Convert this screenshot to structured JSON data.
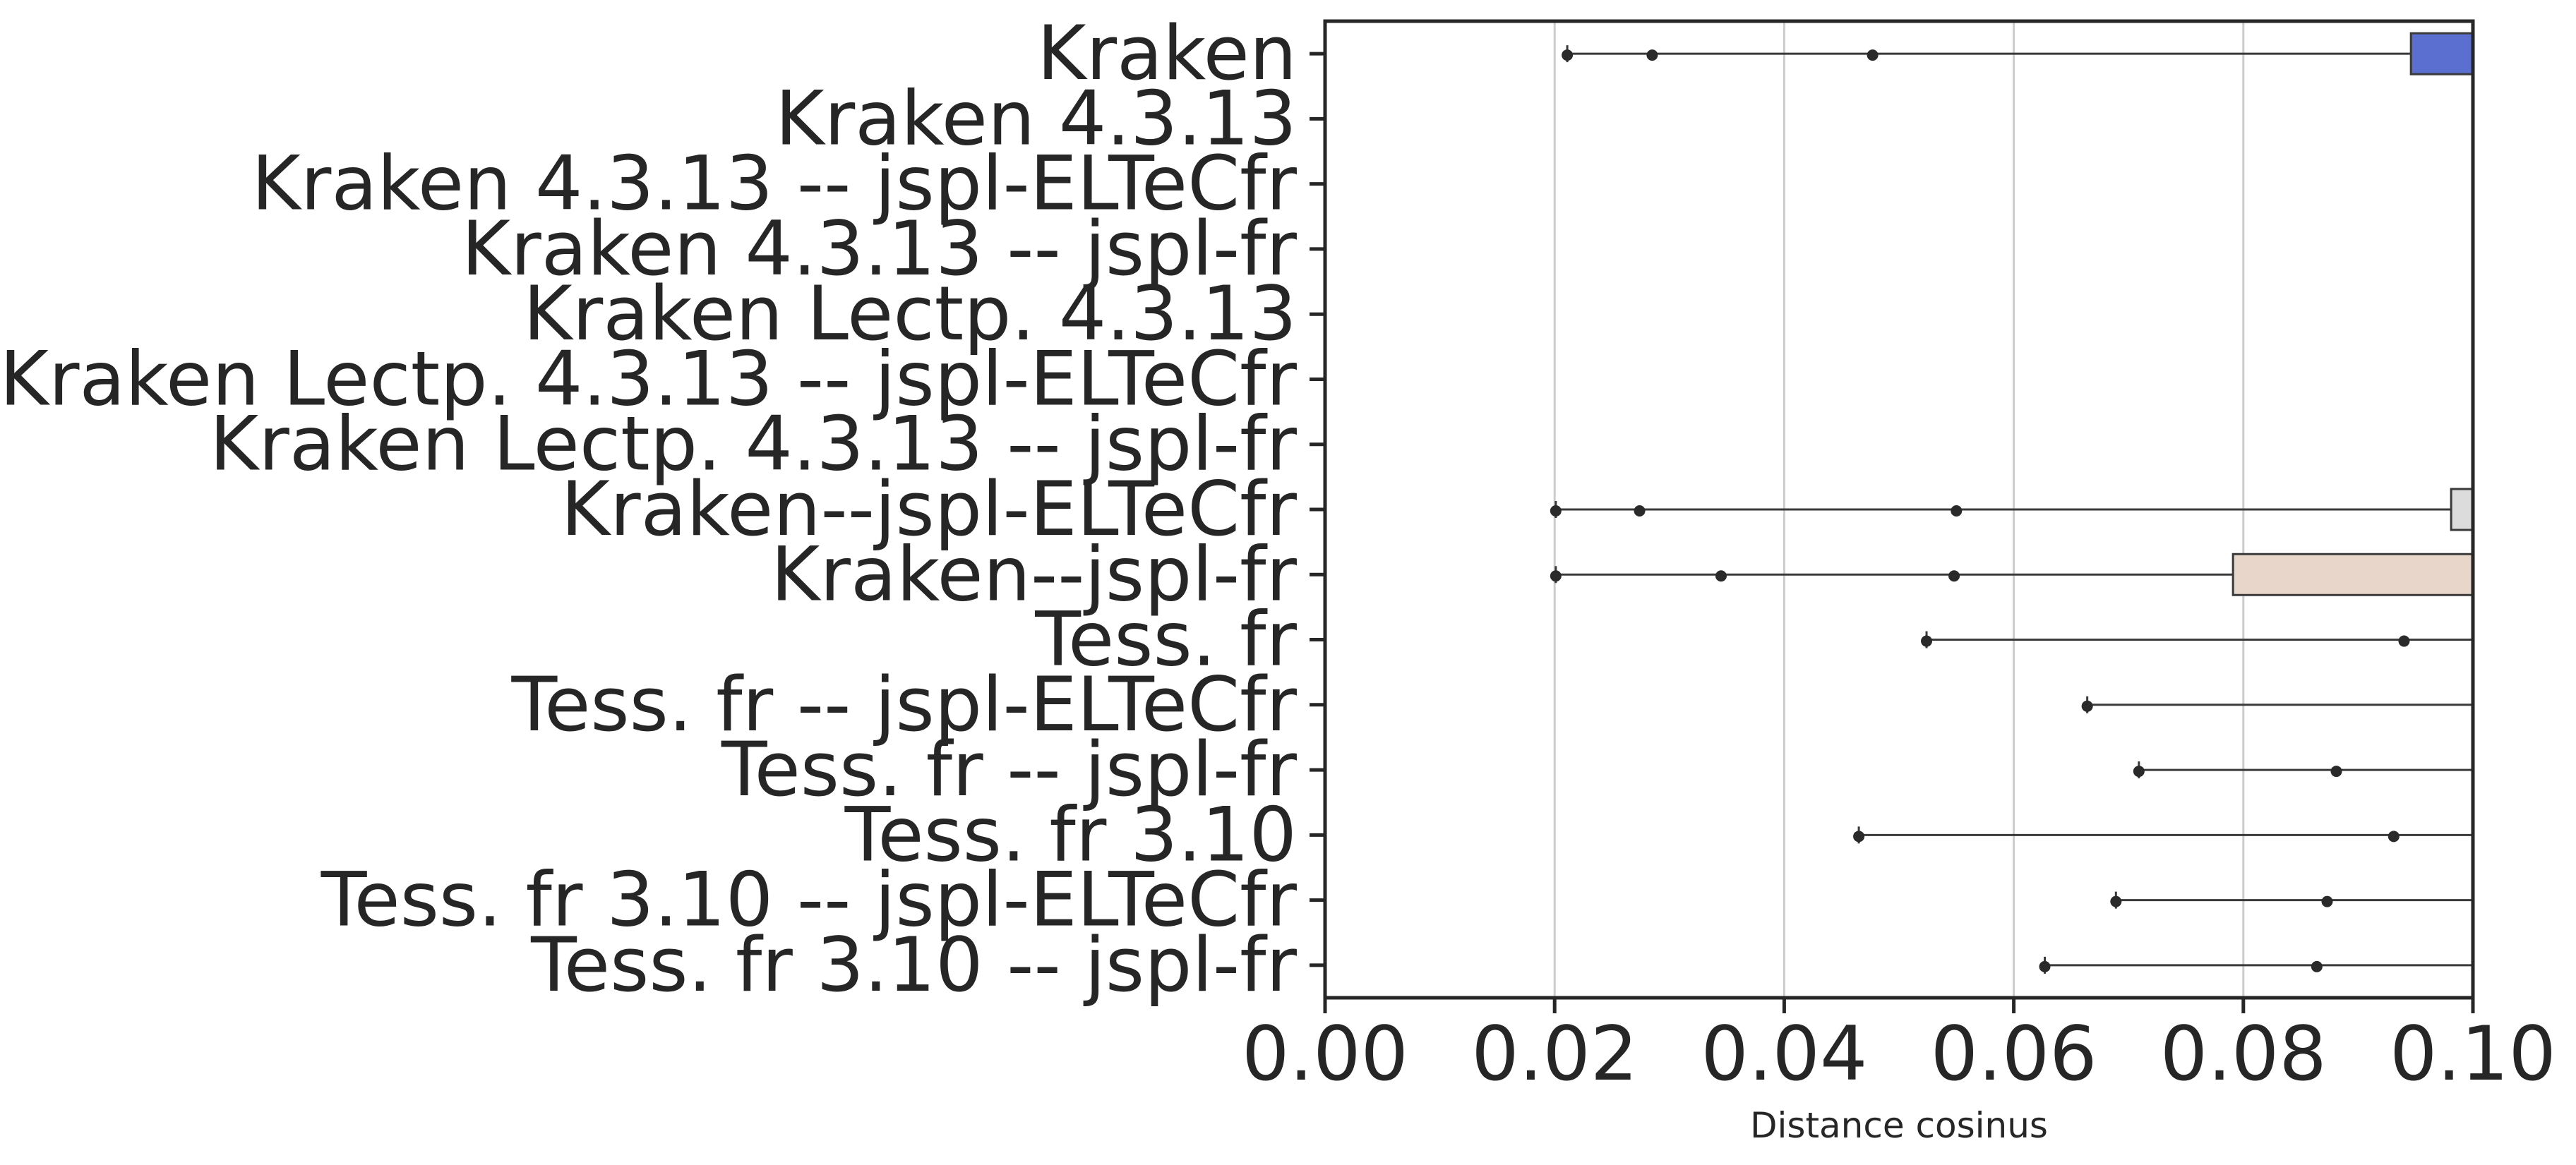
{
  "chart_data": {
    "type": "box",
    "orientation": "horizontal",
    "title": "",
    "xlabel": "Distance cosinus",
    "ylabel": "",
    "xlim": [
      0.0,
      0.1
    ],
    "xticks": [
      "0.00",
      "0.02",
      "0.04",
      "0.06",
      "0.08",
      "0.10"
    ],
    "grid": "vertical",
    "categories": [
      "Kraken",
      "Kraken 4.3.13",
      "Kraken 4.3.13 -- jspl-ELTeCfr",
      "Kraken 4.3.13 -- jspl-fr",
      "Kraken Lectp. 4.3.13",
      "Kraken Lectp. 4.3.13 -- jspl-ELTeCfr",
      "Kraken Lectp. 4.3.13 -- jspl-fr",
      "Kraken--jspl-ELTeCfr",
      "Kraken--jspl-fr",
      "Tess. fr",
      "Tess. fr -- jspl-ELTeCfr",
      "Tess. fr -- jspl-fr",
      "Tess. fr 3.10",
      "Tess. fr 3.10 -- jspl-ELTeCfr",
      "Tess. fr 3.10 -- jspl-fr"
    ],
    "boxes": [
      {
        "category": "Kraken",
        "whisker_low": 0.0211,
        "box_start": 0.0946,
        "color": "#5a6fd0",
        "outliers": [
          0.0211,
          0.0285,
          0.0477
        ]
      },
      {
        "category": "Kraken 4.3.13",
        "whisker_low": null,
        "box_start": null,
        "color": null,
        "outliers": []
      },
      {
        "category": "Kraken 4.3.13 -- jspl-ELTeCfr",
        "whisker_low": null,
        "box_start": null,
        "color": null,
        "outliers": []
      },
      {
        "category": "Kraken 4.3.13 -- jspl-fr",
        "whisker_low": null,
        "box_start": null,
        "color": null,
        "outliers": []
      },
      {
        "category": "Kraken Lectp. 4.3.13",
        "whisker_low": null,
        "box_start": null,
        "color": null,
        "outliers": []
      },
      {
        "category": "Kraken Lectp. 4.3.13 -- jspl-ELTeCfr",
        "whisker_low": null,
        "box_start": null,
        "color": null,
        "outliers": []
      },
      {
        "category": "Kraken Lectp. 4.3.13 -- jspl-fr",
        "whisker_low": null,
        "box_start": null,
        "color": null,
        "outliers": []
      },
      {
        "category": "Kraken--jspl-ELTeCfr",
        "whisker_low": 0.0201,
        "box_start": 0.0981,
        "color": "#dcdcdc",
        "outliers": [
          0.0201,
          0.0274,
          0.055
        ]
      },
      {
        "category": "Kraken--jspl-fr",
        "whisker_low": 0.0201,
        "box_start": 0.0791,
        "color": "#e8d6ca",
        "outliers": [
          0.0201,
          0.0345,
          0.0548
        ]
      },
      {
        "category": "Tess. fr",
        "whisker_low": 0.0524,
        "box_start": null,
        "color": null,
        "outliers": [
          0.0524,
          0.094
        ]
      },
      {
        "category": "Tess. fr -- jspl-ELTeCfr",
        "whisker_low": 0.0664,
        "box_start": null,
        "color": null,
        "outliers": [
          0.0664
        ]
      },
      {
        "category": "Tess. fr -- jspl-fr",
        "whisker_low": 0.0709,
        "box_start": null,
        "color": null,
        "outliers": [
          0.0709,
          0.0881
        ]
      },
      {
        "category": "Tess. fr 3.10",
        "whisker_low": 0.0465,
        "box_start": null,
        "color": null,
        "outliers": [
          0.0465,
          0.0931
        ]
      },
      {
        "category": "Tess. fr 3.10 -- jspl-ELTeCfr",
        "whisker_low": 0.0689,
        "box_start": null,
        "color": null,
        "outliers": [
          0.0689,
          0.0873
        ]
      },
      {
        "category": "Tess. fr 3.10 -- jspl-fr",
        "whisker_low": 0.0627,
        "box_start": null,
        "color": null,
        "outliers": [
          0.0627,
          0.0864
        ]
      }
    ]
  }
}
